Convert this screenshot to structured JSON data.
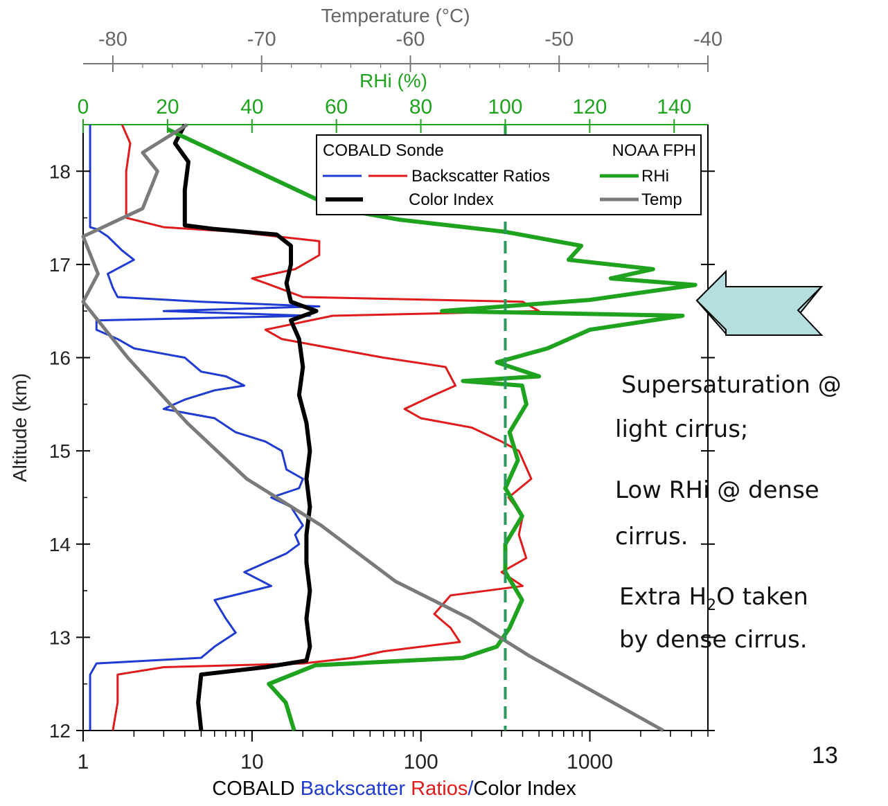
{
  "slide_number": "13",
  "annotations": {
    "line1": "Supersaturation @",
    "line2": "light cirrus;",
    "line3": "Low RHi @ dense",
    "line4": "cirrus.",
    "line5_pre": "Extra H",
    "line5_sub": "2",
    "line5_post": "O taken",
    "line6": "by dense cirrus."
  },
  "chart_data": {
    "type": "line",
    "ylabel": "Altitude (km)",
    "ylim": [
      12,
      18.5
    ],
    "y_ticks": [
      "12",
      "13",
      "14",
      "15",
      "16",
      "17",
      "18"
    ],
    "axes": {
      "bottom": {
        "label_parts": [
          {
            "text": "COBALD ",
            "color": "#000000"
          },
          {
            "text": "Backscatter",
            "color": "#1f3bd1"
          },
          {
            "text": " ",
            "color": "#000000"
          },
          {
            "text": "Ratios",
            "color": "#e01b1b"
          },
          {
            "text": "/",
            "color": "#1f3bd1"
          },
          {
            "text": "Color Index",
            "color": "#000000"
          }
        ],
        "scale": "log",
        "range": [
          1,
          5000
        ],
        "ticks": [
          "1",
          "10",
          "100",
          "1000"
        ]
      },
      "top_temperature": {
        "label": "Temperature (°C)",
        "range": [
          -82,
          -40
        ],
        "ticks": [
          "-80",
          "-70",
          "-60",
          "-50",
          "-40"
        ]
      },
      "top_rhi": {
        "label": "RHi (%)",
        "range": [
          0,
          148
        ],
        "ticks": [
          "0",
          "20",
          "40",
          "60",
          "80",
          "100",
          "120",
          "140"
        ]
      }
    },
    "legend": {
      "placement": "top-right",
      "left_title": "COBALD Sonde",
      "right_title": "NOAA FPH",
      "entries": [
        "Backscatter Ratios",
        "Color Index",
        "RHi",
        "Temp"
      ]
    },
    "reference_line": {
      "axis": "RHi",
      "value": 100,
      "style": "dashed"
    },
    "colors": {
      "blue": "#1f3bd1",
      "red": "#e01b1b",
      "black": "#000000",
      "green": "#1fa31f",
      "gray": "#7a7a7a",
      "axis_gray": "#777777",
      "arrow_fill": "#b5dede"
    },
    "series": [
      {
        "name": "Backscatter Ratios",
        "color": "#1f3bd1",
        "axis": "bottom",
        "points": [
          [
            1.1,
            12.0
          ],
          [
            1.1,
            12.6
          ],
          [
            1.2,
            12.72
          ],
          [
            5,
            12.78
          ],
          [
            6,
            12.9
          ],
          [
            8,
            13.05
          ],
          [
            7,
            13.2
          ],
          [
            6,
            13.4
          ],
          [
            13,
            13.55
          ],
          [
            9,
            13.7
          ],
          [
            16,
            13.9
          ],
          [
            19,
            14.0
          ],
          [
            18,
            14.1
          ],
          [
            20,
            14.2
          ],
          [
            17,
            14.4
          ],
          [
            13,
            14.5
          ],
          [
            19,
            14.6
          ],
          [
            20,
            14.7
          ],
          [
            16,
            14.8
          ],
          [
            15,
            15.0
          ],
          [
            12,
            15.1
          ],
          [
            8,
            15.2
          ],
          [
            6,
            15.35
          ],
          [
            3,
            15.45
          ],
          [
            4,
            15.55
          ],
          [
            6,
            15.65
          ],
          [
            9,
            15.7
          ],
          [
            7,
            15.8
          ],
          [
            5,
            15.85
          ],
          [
            4,
            16.0
          ],
          [
            2,
            16.1
          ],
          [
            1.6,
            16.2
          ],
          [
            1.2,
            16.3
          ],
          [
            1.2,
            16.4
          ],
          [
            22,
            16.45
          ],
          [
            3,
            16.5
          ],
          [
            25,
            16.55
          ],
          [
            5,
            16.6
          ],
          [
            1.6,
            16.65
          ],
          [
            1.5,
            16.75
          ],
          [
            1.4,
            16.9
          ],
          [
            2,
            17.05
          ],
          [
            1.7,
            17.15
          ],
          [
            1.4,
            17.3
          ],
          [
            1.2,
            17.38
          ],
          [
            1.1,
            17.4
          ],
          [
            1.1,
            18.5
          ]
        ]
      },
      {
        "name": "Backscatter Ratios (red)",
        "color": "#e01b1b",
        "axis": "bottom",
        "points": [
          [
            1.5,
            12.0
          ],
          [
            1.6,
            12.3
          ],
          [
            1.6,
            12.6
          ],
          [
            3,
            12.68
          ],
          [
            20,
            12.72
          ],
          [
            40,
            12.78
          ],
          [
            60,
            12.85
          ],
          [
            170,
            12.95
          ],
          [
            150,
            13.1
          ],
          [
            120,
            13.25
          ],
          [
            150,
            13.45
          ],
          [
            400,
            13.55
          ],
          [
            300,
            13.7
          ],
          [
            420,
            13.85
          ],
          [
            380,
            14.1
          ],
          [
            400,
            14.3
          ],
          [
            330,
            14.5
          ],
          [
            450,
            14.7
          ],
          [
            380,
            15.0
          ],
          [
            300,
            15.1
          ],
          [
            200,
            15.25
          ],
          [
            100,
            15.35
          ],
          [
            80,
            15.45
          ],
          [
            120,
            15.6
          ],
          [
            160,
            15.7
          ],
          [
            140,
            15.9
          ],
          [
            60,
            16.0
          ],
          [
            30,
            16.1
          ],
          [
            15,
            16.2
          ],
          [
            12,
            16.3
          ],
          [
            30,
            16.45
          ],
          [
            500,
            16.5
          ],
          [
            400,
            16.6
          ],
          [
            20,
            16.65
          ],
          [
            12,
            16.8
          ],
          [
            10,
            16.85
          ],
          [
            18,
            16.95
          ],
          [
            25,
            17.1
          ],
          [
            25,
            17.25
          ],
          [
            8,
            17.35
          ],
          [
            3,
            17.4
          ],
          [
            1.8,
            17.5
          ],
          [
            1.8,
            18.0
          ],
          [
            1.9,
            18.3
          ],
          [
            1.7,
            18.5
          ]
        ]
      },
      {
        "name": "Color Index",
        "color": "#000000",
        "axis": "bottom",
        "points": [
          [
            5,
            12.0
          ],
          [
            4.8,
            12.3
          ],
          [
            5,
            12.6
          ],
          [
            12,
            12.68
          ],
          [
            21,
            12.75
          ],
          [
            22,
            12.9
          ],
          [
            21,
            13.2
          ],
          [
            22,
            13.5
          ],
          [
            21,
            13.8
          ],
          [
            21,
            14.1
          ],
          [
            22,
            14.4
          ],
          [
            21,
            14.7
          ],
          [
            22,
            15.0
          ],
          [
            21,
            15.3
          ],
          [
            19,
            15.6
          ],
          [
            20,
            15.9
          ],
          [
            19,
            16.2
          ],
          [
            17,
            16.4
          ],
          [
            24,
            16.5
          ],
          [
            17,
            16.6
          ],
          [
            16,
            16.8
          ],
          [
            17,
            17.0
          ],
          [
            17,
            17.2
          ],
          [
            14,
            17.32
          ],
          [
            6,
            17.38
          ],
          [
            4,
            17.42
          ],
          [
            4,
            17.8
          ],
          [
            4.2,
            18.1
          ],
          [
            3.5,
            18.3
          ],
          [
            4,
            18.5
          ]
        ]
      },
      {
        "name": "RHi",
        "color": "#1fa31f",
        "axis": "rhi",
        "points": [
          [
            50,
            12.0
          ],
          [
            48,
            12.3
          ],
          [
            44,
            12.5
          ],
          [
            55,
            12.7
          ],
          [
            90,
            12.78
          ],
          [
            98,
            12.9
          ],
          [
            101,
            13.1
          ],
          [
            104,
            13.4
          ],
          [
            100,
            13.7
          ],
          [
            100,
            14.0
          ],
          [
            104,
            14.3
          ],
          [
            100,
            14.6
          ],
          [
            103,
            14.9
          ],
          [
            101,
            15.2
          ],
          [
            105,
            15.5
          ],
          [
            104,
            15.7
          ],
          [
            90,
            15.75
          ],
          [
            108,
            15.8
          ],
          [
            98,
            15.95
          ],
          [
            110,
            16.1
          ],
          [
            120,
            16.3
          ],
          [
            142,
            16.45
          ],
          [
            85,
            16.5
          ],
          [
            120,
            16.62
          ],
          [
            145,
            16.78
          ],
          [
            125,
            16.85
          ],
          [
            135,
            16.95
          ],
          [
            115,
            17.05
          ],
          [
            118,
            17.2
          ],
          [
            100,
            17.35
          ],
          [
            75,
            17.48
          ],
          [
            60,
            17.6
          ],
          [
            20,
            18.45
          ]
        ]
      },
      {
        "name": "Temp",
        "color": "#7a7a7a",
        "axis": "temperature",
        "points": [
          [
            -43,
            12.0
          ],
          [
            -52,
            12.8
          ],
          [
            -56,
            13.2
          ],
          [
            -61,
            13.6
          ],
          [
            -66,
            14.2
          ],
          [
            -71,
            14.7
          ],
          [
            -75,
            15.3
          ],
          [
            -79,
            16.0
          ],
          [
            -82,
            16.6
          ],
          [
            -81,
            16.9
          ],
          [
            -82,
            17.3
          ],
          [
            -80,
            17.45
          ],
          [
            -78,
            17.6
          ],
          [
            -77,
            18.0
          ],
          [
            -78,
            18.2
          ],
          [
            -76,
            18.4
          ],
          [
            -75,
            18.5
          ]
        ]
      }
    ]
  }
}
